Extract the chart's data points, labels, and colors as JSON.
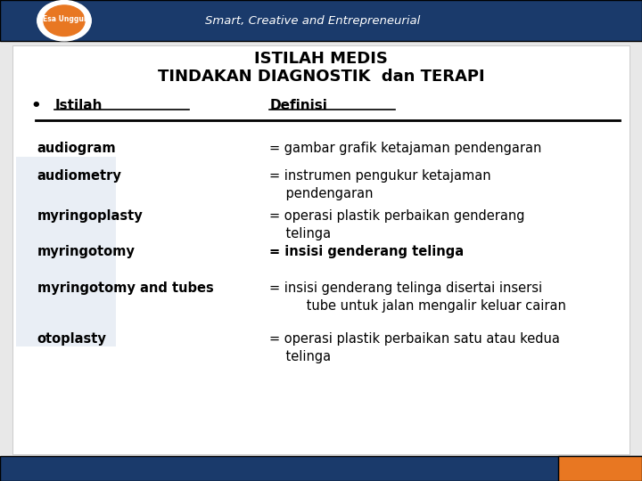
{
  "title_line1": "ISTILAH MEDIS",
  "title_line2": "TINDAKAN DIAGNOSTIK  dan TERAPI",
  "header_col1": "Istilah",
  "header_col2": "Definisi",
  "rows": [
    {
      "term": "audiogram",
      "definition": "= gambar grafik ketajaman pendengaran",
      "bold_def": false
    },
    {
      "term": "audiometry",
      "definition": "= instrumen pengukur ketajaman\n    pendengaran",
      "bold_def": false
    },
    {
      "term": "myringoplasty",
      "definition": "= operasi plastik perbaikan genderang\n    telinga",
      "bold_def": false
    },
    {
      "term": "myringotomy",
      "definition": "= insisi genderang telinga",
      "bold_def": true
    },
    {
      "term": "myringotomy and tubes",
      "definition": "= insisi genderang telinga disertai insersi\n         tube untuk jalan mengalir keluar cairan",
      "bold_def": false
    },
    {
      "term": "otoplasty",
      "definition": "= operasi plastik perbaikan satu atau kedua\n    telinga",
      "bold_def": false
    }
  ],
  "bg_color": "#e8e8e8",
  "accent_color": "#e87722",
  "top_bar_color": "#1a3a6b",
  "text_color": "#000000",
  "title_color": "#000000",
  "font_size_title": 13,
  "font_size_body": 10.5,
  "font_size_header": 11
}
